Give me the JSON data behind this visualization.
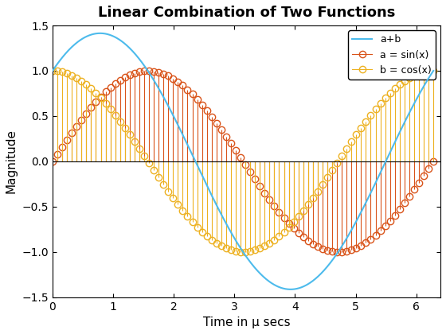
{
  "title": "Linear Combination of Two Functions",
  "xlabel": "Time in μ secs",
  "ylabel": "Magnitude",
  "xlim": [
    0,
    6.4
  ],
  "ylim": [
    -1.5,
    1.5
  ],
  "x_min": 0,
  "x_max": 6.283185307179586,
  "n_smooth": 500,
  "n_stem": 80,
  "line_color": "#4DBBEC",
  "stem_a_color": "#D95319",
  "stem_b_color": "#EDB120",
  "legend_labels": [
    "a+b",
    "a = sin(x)",
    "b = cos(x)"
  ],
  "xticks": [
    0,
    1,
    2,
    3,
    4,
    5,
    6
  ],
  "yticks": [
    -1.5,
    -1.0,
    -0.5,
    0.0,
    0.5,
    1.0,
    1.5
  ],
  "background_color": "#ffffff",
  "marker_size": 6,
  "stem_linewidth": 0.8,
  "line_linewidth": 1.5
}
